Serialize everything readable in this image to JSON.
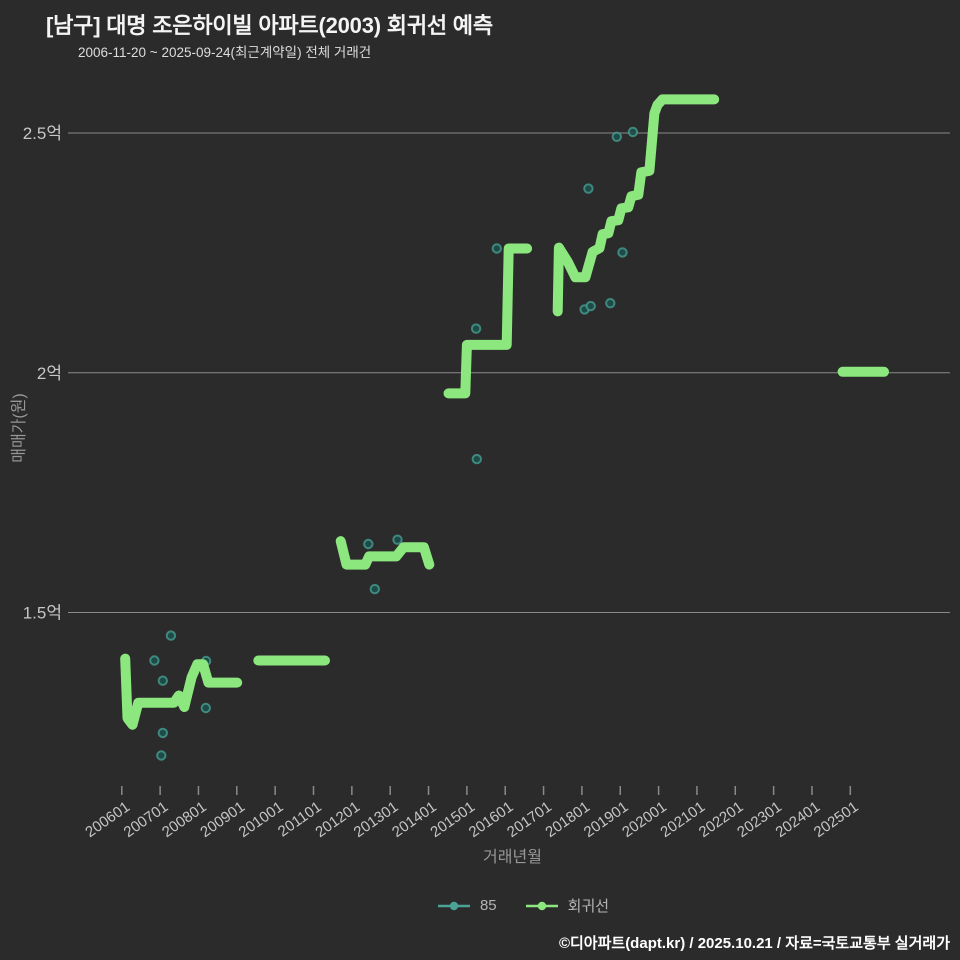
{
  "header": {
    "title": "[남구] 대명 조은하이빌 아파트(2003) 회귀선 예측",
    "subtitle": "2006-11-20 ~ 2025-09-24(최근계약일) 전체 거래건"
  },
  "footer": {
    "credit": "©디아파트(dapt.kr) / 2025.10.21 / 자료=국토교통부 실거래가"
  },
  "colors": {
    "background": "#2b2b2b",
    "grid": "#8a8a8a",
    "tick_label": "#c6c6c6",
    "axis_title": "#979797",
    "regression_line": "#8ce87e",
    "scatter_stroke": "#4aa396",
    "scatter_fill": "#1d4f4a",
    "legend_text": "#b4b4b4",
    "title_text": "#f4f4f4",
    "subtitle_text": "#dddddd",
    "footer_text": "#ffffff"
  },
  "chart_data": {
    "type": "line",
    "title": "[남구] 대명 조은하이빌 아파트(2003) 회귀선 예측",
    "subtitle": "2006-11-20 ~ 2025-09-24(최근계약일) 전체 거래건",
    "xlabel": "거래년월",
    "ylabel": "매매가(원)",
    "grid": true,
    "legend_position": "bottom",
    "x_range": [
      2004.78,
      2027.6
    ],
    "y_range": [
      1.13,
      2.6
    ],
    "x_tick_labels": [
      "200601",
      "200701",
      "200801",
      "200901",
      "201001",
      "201101",
      "201201",
      "201301",
      "201401",
      "201501",
      "201601",
      "201701",
      "201801",
      "201901",
      "202001",
      "202101",
      "202201",
      "202301",
      "202401",
      "202501"
    ],
    "x_tick_values": [
      2006,
      2007,
      2008,
      2009,
      2010,
      2011,
      2012,
      2013,
      2014,
      2015,
      2016,
      2017,
      2018,
      2019,
      2020,
      2021,
      2022,
      2023,
      2024,
      2025
    ],
    "y_ticks": [
      {
        "label": "2.5억",
        "value": 2.5
      },
      {
        "label": "2억",
        "value": 2.0
      },
      {
        "label": "1.5억",
        "value": 1.5
      }
    ],
    "y_unit": "억",
    "series": [
      {
        "name": "85",
        "type": "scatter",
        "points": [
          [
            2006.85,
            1.4
          ],
          [
            2007.03,
            1.202
          ],
          [
            2007.07,
            1.249
          ],
          [
            2007.07,
            1.358
          ],
          [
            2007.28,
            1.452
          ],
          [
            2008.19,
            1.301
          ],
          [
            2008.2,
            1.399
          ],
          [
            2012.43,
            1.643
          ],
          [
            2012.6,
            1.549
          ],
          [
            2013.19,
            1.652
          ],
          [
            2015.24,
            2.092
          ],
          [
            2015.26,
            1.82
          ],
          [
            2015.78,
            2.259
          ],
          [
            2018.07,
            2.132
          ],
          [
            2018.17,
            2.384
          ],
          [
            2018.23,
            2.139
          ],
          [
            2018.74,
            2.145
          ],
          [
            2018.91,
            2.492
          ],
          [
            2019.06,
            2.251
          ],
          [
            2019.33,
            2.502
          ]
        ]
      },
      {
        "name": "회귀선",
        "type": "line",
        "segments": [
          [
            [
              2006.09,
              1.404
            ],
            [
              2006.15,
              1.28
            ],
            [
              2006.28,
              1.266
            ],
            [
              2006.43,
              1.312
            ],
            [
              2007.36,
              1.312
            ],
            [
              2007.49,
              1.327
            ],
            [
              2007.63,
              1.303
            ],
            [
              2007.82,
              1.365
            ],
            [
              2007.97,
              1.392
            ],
            [
              2008.12,
              1.392
            ],
            [
              2008.26,
              1.354
            ],
            [
              2009.01,
              1.354
            ]
          ],
          [
            [
              2009.56,
              1.4
            ],
            [
              2011.3,
              1.4
            ]
          ],
          [
            [
              2011.71,
              1.649
            ],
            [
              2011.86,
              1.6
            ],
            [
              2012.35,
              1.6
            ],
            [
              2012.45,
              1.617
            ],
            [
              2013.16,
              1.617
            ],
            [
              2013.35,
              1.636
            ],
            [
              2013.88,
              1.636
            ],
            [
              2014.02,
              1.6
            ]
          ],
          [
            [
              2014.52,
              1.957
            ],
            [
              2014.96,
              1.957
            ],
            [
              2015.0,
              2.058
            ],
            [
              2016.04,
              2.058
            ],
            [
              2016.09,
              2.259
            ],
            [
              2016.57,
              2.259
            ]
          ],
          [
            [
              2017.37,
              2.128
            ],
            [
              2017.4,
              2.261
            ],
            [
              2017.64,
              2.23
            ],
            [
              2017.83,
              2.199
            ],
            [
              2018.09,
              2.199
            ],
            [
              2018.28,
              2.252
            ],
            [
              2018.46,
              2.26
            ],
            [
              2018.54,
              2.289
            ],
            [
              2018.69,
              2.291
            ],
            [
              2018.77,
              2.316
            ],
            [
              2018.95,
              2.318
            ],
            [
              2019.03,
              2.343
            ],
            [
              2019.21,
              2.345
            ],
            [
              2019.29,
              2.368
            ],
            [
              2019.47,
              2.371
            ],
            [
              2019.55,
              2.418
            ],
            [
              2019.76,
              2.421
            ],
            [
              2019.89,
              2.541
            ],
            [
              2019.97,
              2.558
            ],
            [
              2020.1,
              2.57
            ],
            [
              2021.45,
              2.57
            ]
          ],
          [
            [
              2024.8,
              2.002
            ],
            [
              2025.88,
              2.002
            ]
          ]
        ]
      }
    ]
  }
}
